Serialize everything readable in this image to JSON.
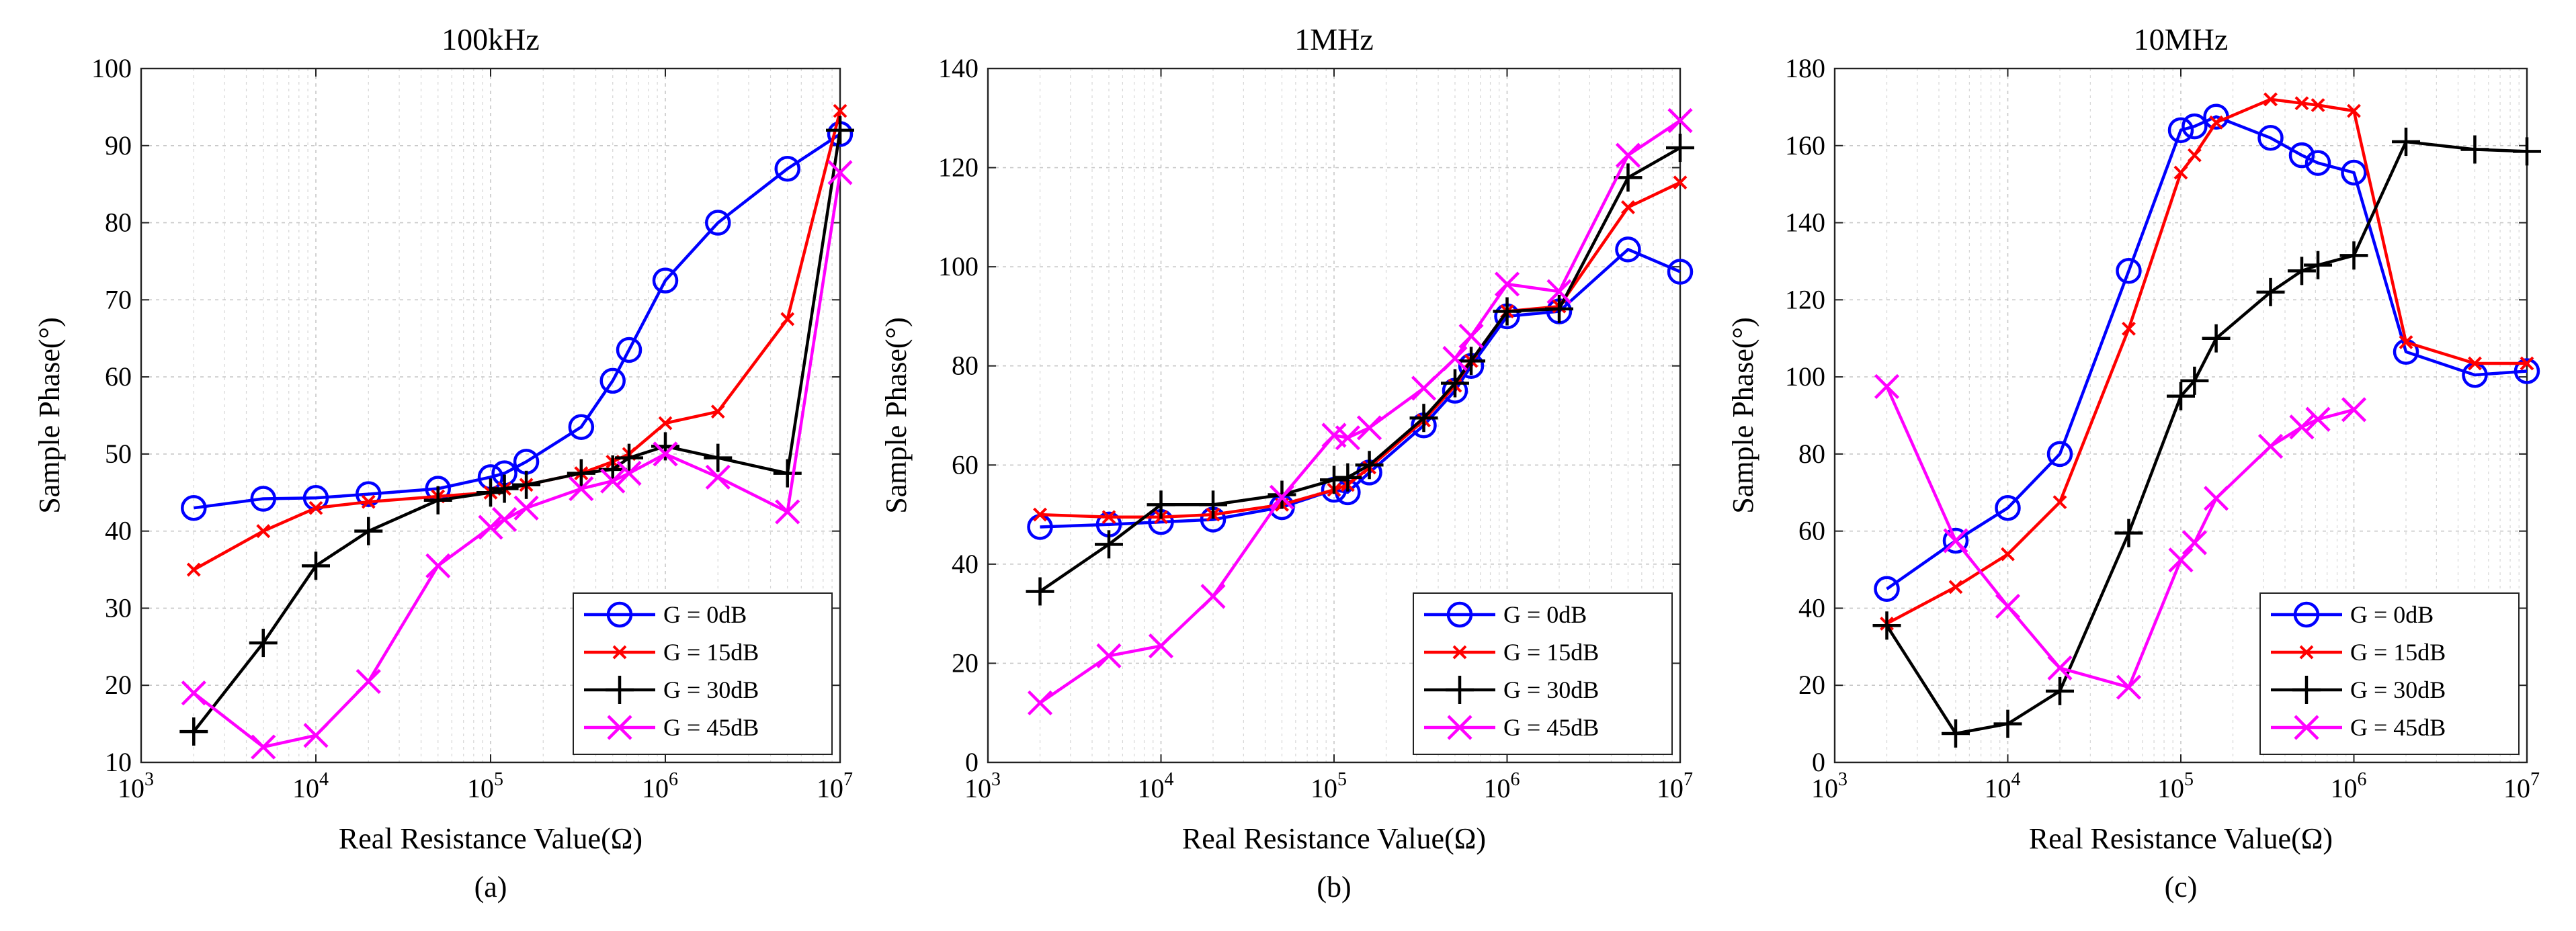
{
  "chart_data": [
    {
      "type": "line",
      "title": "100kHz",
      "xlabel": "Real Resistance Value(Ω)",
      "ylabel": "Sample Phase(°)",
      "sublabel": "(a)",
      "xscale": "log",
      "xlim": [
        1000,
        10000000
      ],
      "ylim": [
        10,
        100
      ],
      "yticks": [
        10,
        20,
        30,
        40,
        50,
        60,
        70,
        80,
        90,
        100
      ],
      "xtick_exponents": [
        3,
        4,
        5,
        6,
        7
      ],
      "grid": true,
      "legend": "bottom-right",
      "series": [
        {
          "name": "G = 0dB",
          "color": "#0000ff",
          "marker": "circle",
          "x": [
            2000,
            5000,
            10000,
            20000,
            50000,
            100000,
            120000,
            160000,
            330000,
            500000,
            620000,
            1000000,
            2000000,
            5000000,
            10000000
          ],
          "y": [
            43,
            44.2,
            44.3,
            44.8,
            45.5,
            47,
            47.5,
            49,
            53.5,
            59.5,
            63.5,
            72.5,
            80,
            87,
            91.5
          ]
        },
        {
          "name": "G = 15dB",
          "color": "#ff0000",
          "marker": "x",
          "x": [
            2000,
            5000,
            10000,
            20000,
            50000,
            100000,
            120000,
            160000,
            330000,
            500000,
            620000,
            1000000,
            2000000,
            5000000,
            10000000
          ],
          "y": [
            35,
            40,
            43,
            43.8,
            44.5,
            45,
            45.5,
            46,
            47.5,
            49,
            50,
            54,
            55.5,
            67.5,
            94.5
          ]
        },
        {
          "name": "G = 30dB",
          "color": "#000000",
          "marker": "plus",
          "x": [
            2000,
            5000,
            10000,
            20000,
            50000,
            100000,
            120000,
            160000,
            330000,
            500000,
            620000,
            1000000,
            2000000,
            5000000,
            10000000
          ],
          "y": [
            14,
            25.5,
            35.5,
            40,
            44,
            45,
            45.5,
            46,
            47.5,
            48,
            49.5,
            51,
            49.5,
            47.5,
            92
          ]
        },
        {
          "name": "G = 45dB",
          "color": "#ff00ff",
          "marker": "x",
          "x": [
            2000,
            5000,
            10000,
            20000,
            50000,
            100000,
            120000,
            160000,
            330000,
            500000,
            620000,
            1000000,
            2000000,
            5000000,
            10000000
          ],
          "y": [
            19,
            12,
            13.5,
            20.5,
            35.5,
            40.5,
            41.5,
            43,
            45.5,
            46.5,
            47.5,
            50,
            47,
            42.5,
            86.5
          ]
        }
      ]
    },
    {
      "type": "line",
      "title": "1MHz",
      "xlabel": "Real Resistance Value(Ω)",
      "ylabel": "Sample Phase(°)",
      "sublabel": "(b)",
      "xscale": "log",
      "xlim": [
        1000,
        10000000
      ],
      "ylim": [
        0,
        140
      ],
      "yticks": [
        0,
        20,
        40,
        60,
        80,
        100,
        120,
        140
      ],
      "xtick_exponents": [
        3,
        4,
        5,
        6,
        7
      ],
      "grid": true,
      "legend": "bottom-right",
      "series": [
        {
          "name": "G = 0dB",
          "color": "#0000ff",
          "marker": "circle",
          "x": [
            2000,
            5000,
            10000,
            20000,
            50000,
            100000,
            120000,
            160000,
            330000,
            500000,
            620000,
            1000000,
            2000000,
            5000000,
            10000000
          ],
          "y": [
            47.5,
            48,
            48.5,
            49,
            51.5,
            55,
            54.5,
            58.5,
            68,
            75,
            80,
            90,
            91,
            103.5,
            99
          ]
        },
        {
          "name": "G = 15dB",
          "color": "#ff0000",
          "marker": "x",
          "x": [
            2000,
            5000,
            10000,
            20000,
            50000,
            100000,
            120000,
            160000,
            330000,
            500000,
            620000,
            1000000,
            2000000,
            5000000,
            10000000
          ],
          "y": [
            50,
            49.5,
            49.5,
            50,
            52,
            55,
            56,
            59.5,
            69,
            76,
            81,
            91,
            92,
            112,
            117
          ]
        },
        {
          "name": "G = 30dB",
          "color": "#000000",
          "marker": "plus",
          "x": [
            2000,
            5000,
            10000,
            20000,
            50000,
            100000,
            120000,
            160000,
            330000,
            500000,
            620000,
            1000000,
            2000000,
            5000000,
            10000000
          ],
          "y": [
            34.5,
            44,
            52,
            52,
            54,
            57,
            57.5,
            60,
            69.5,
            76.5,
            81,
            91,
            91.5,
            118,
            124
          ]
        },
        {
          "name": "G = 45dB",
          "color": "#ff00ff",
          "marker": "x",
          "x": [
            2000,
            5000,
            10000,
            20000,
            50000,
            100000,
            120000,
            160000,
            330000,
            500000,
            620000,
            1000000,
            2000000,
            5000000,
            10000000
          ],
          "y": [
            12,
            21.5,
            23.5,
            33.5,
            53.5,
            66,
            65.5,
            67.5,
            75.5,
            81.5,
            86,
            96.5,
            95,
            122.5,
            129.5
          ]
        }
      ]
    },
    {
      "type": "line",
      "title": "10MHz",
      "xlabel": "Real Resistance Value(Ω)",
      "ylabel": "Sample Phase(°)",
      "sublabel": "(c)",
      "xscale": "log",
      "xlim": [
        1000,
        10000000
      ],
      "ylim": [
        0,
        180
      ],
      "yticks": [
        0,
        20,
        40,
        60,
        80,
        100,
        120,
        140,
        160,
        180
      ],
      "xtick_exponents": [
        3,
        4,
        5,
        6,
        7
      ],
      "grid": true,
      "legend": "bottom-right",
      "series": [
        {
          "name": "G = 0dB",
          "color": "#0000ff",
          "marker": "circle",
          "x": [
            2000,
            5000,
            10000,
            20000,
            50000,
            100000,
            120000,
            160000,
            330000,
            500000,
            620000,
            1000000,
            2000000,
            5000000,
            10000000
          ],
          "y": [
            45,
            57.5,
            66,
            80,
            127.5,
            164,
            165,
            167.5,
            162,
            157.5,
            155.5,
            153,
            106.5,
            100.5,
            101.5
          ]
        },
        {
          "name": "G = 15dB",
          "color": "#ff0000",
          "marker": "x",
          "x": [
            2000,
            5000,
            10000,
            20000,
            50000,
            100000,
            120000,
            160000,
            330000,
            500000,
            620000,
            1000000,
            2000000,
            5000000,
            10000000
          ],
          "y": [
            36,
            45.5,
            54,
            67.5,
            112.5,
            153,
            157.5,
            166,
            172,
            171,
            170.5,
            169,
            109,
            103.5,
            103.5
          ]
        },
        {
          "name": "G = 30dB",
          "color": "#000000",
          "marker": "plus",
          "x": [
            2000,
            5000,
            10000,
            20000,
            50000,
            100000,
            120000,
            160000,
            330000,
            500000,
            620000,
            1000000,
            2000000,
            5000000,
            10000000
          ],
          "y": [
            35.5,
            7.5,
            10,
            18.5,
            59.5,
            95,
            99,
            110,
            122,
            127.5,
            129,
            131.5,
            161,
            159,
            158.5
          ]
        },
        {
          "name": "G = 45dB",
          "color": "#ff00ff",
          "marker": "x",
          "x": [
            2000,
            5000,
            10000,
            20000,
            50000,
            100000,
            120000,
            160000,
            330000,
            500000,
            620000,
            1000000
          ],
          "y": [
            97.5,
            57.5,
            40.5,
            24.5,
            19.5,
            52.5,
            57,
            68.5,
            82,
            87,
            89,
            91.5
          ]
        }
      ]
    }
  ]
}
